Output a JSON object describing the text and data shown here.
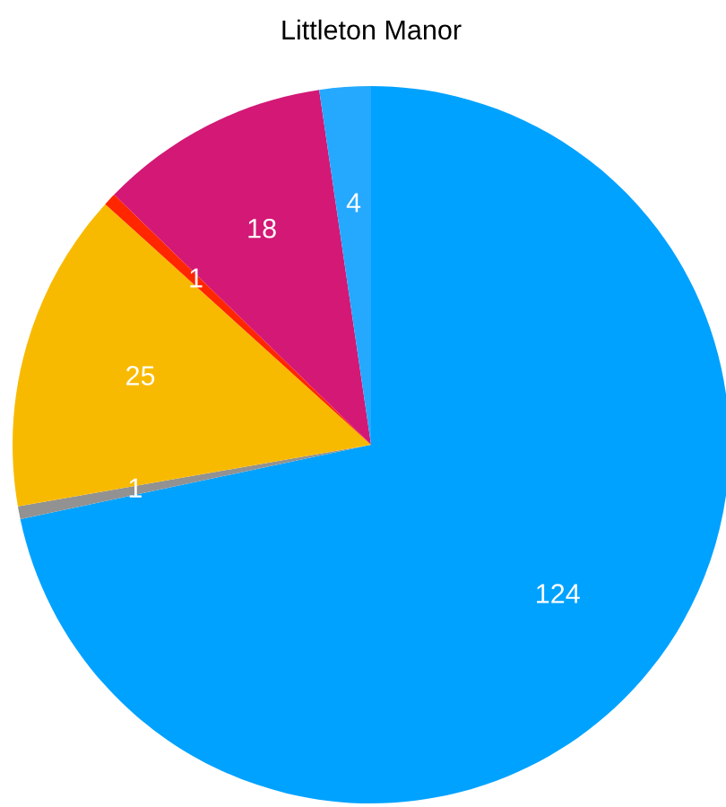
{
  "chart_data": {
    "type": "pie",
    "title": "Littleton Manor",
    "categories": [
      null,
      null,
      null,
      null,
      null,
      null
    ],
    "values": [
      124,
      1,
      25,
      1,
      18,
      4
    ],
    "colors": [
      "#00a2ff",
      "#929292",
      "#f8ba00",
      "#ff2600",
      "#d31876",
      "#24a9ff"
    ],
    "data_labels": true
  }
}
